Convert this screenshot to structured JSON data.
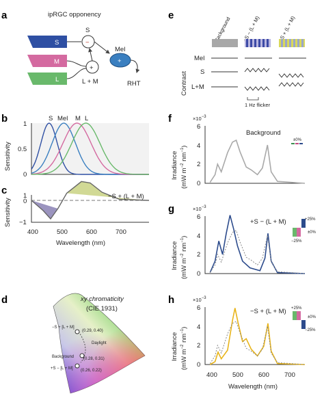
{
  "colors": {
    "S": "#2e4fa3",
    "M": "#d46aa0",
    "L": "#69b96b",
    "Mel": "#3a7fc0",
    "gray": "#a9a9a9",
    "blue": "#2c4b8c",
    "yellow": "#e8b41a",
    "opp_yellow": "#ccd58a",
    "opp_purple": "#8a81b4"
  },
  "panels": {
    "a": "a",
    "b": "b",
    "c": "c",
    "d": "d",
    "e": "e",
    "f": "f",
    "g": "g",
    "h": "h"
  },
  "a": {
    "title": "ipRGC opponency",
    "S": "S",
    "M": "M",
    "L": "L",
    "S_node": "S",
    "minus": "−",
    "plus": "+",
    "LM": "L + M",
    "Mel": "Mel",
    "mel_plus": "+",
    "RHT": "RHT"
  },
  "b": {
    "ylabel": "Sensitivity",
    "labels": [
      "S",
      "Mel",
      "M",
      "L"
    ],
    "yticks": [
      "0",
      "0.5",
      "1"
    ]
  },
  "c": {
    "ylabel": "Sensitivity",
    "yticks": [
      "1",
      "0",
      "−1"
    ],
    "annotation": "−S + (L + M)",
    "xticks": [
      "400",
      "500",
      "600",
      "700"
    ],
    "xlabel": "Wavelength (nm)"
  },
  "d": {
    "title1": "xy chromaticity",
    "title2": "(CIE 1931)",
    "labels": [
      "−S + [L + M]",
      "(0.29, 0.40)",
      "Daylight",
      "Background",
      "(0.28, 0.31)",
      "+S − [L + M]",
      "(0.26, 0.22)"
    ]
  },
  "e": {
    "cols": [
      "Background",
      "+S − (L + M)",
      "−S + (L + M)"
    ],
    "rows": [
      "Mel",
      "S",
      "L+M"
    ],
    "contrast": "Contrast",
    "flicker": "1 Hz flicker"
  },
  "f": {
    "exp": "×10",
    "exp_power": "−3",
    "yticks": [
      "0",
      "2",
      "4",
      "6"
    ],
    "ylabel1": "Irradiance",
    "ylabel2": "(mW m",
    "ylabel2_sup1": "−2",
    "ylabel2_mid": " nm",
    "ylabel2_sup2": "−1",
    "ylabel2_end": ")",
    "annotation": "Background",
    "legend": "±0%"
  },
  "g": {
    "exp": "×10",
    "exp_power": "−3",
    "yticks": [
      "0",
      "2",
      "4",
      "6"
    ],
    "annotation": "+S − (L + M)",
    "legend": [
      "+25%",
      "±0%",
      "−25%"
    ]
  },
  "h": {
    "exp": "×10",
    "exp_power": "−3",
    "yticks": [
      "0",
      "2",
      "4",
      "6"
    ],
    "annotation": "−S + (L + M)",
    "legend": [
      "+25%",
      "±0%",
      "−25%"
    ],
    "xticks": [
      "400",
      "500",
      "600",
      "700"
    ],
    "xlabel": "Wavelength (nm)"
  },
  "chart_data": [
    {
      "type": "line",
      "panel": "b",
      "x": [
        380,
        780
      ],
      "ylim": [
        0,
        1
      ],
      "series": [
        {
          "name": "S",
          "peak": 440
        },
        {
          "name": "Mel",
          "peak": 490
        },
        {
          "name": "M",
          "peak": 535
        },
        {
          "name": "L",
          "peak": 565
        }
      ]
    },
    {
      "type": "area",
      "panel": "c",
      "ylim": [
        -1,
        1
      ],
      "series": [
        {
          "name": "−S + (L + M)",
          "points": [
            [
              380,
              0
            ],
            [
              420,
              -0.5
            ],
            [
              445,
              -0.9
            ],
            [
              470,
              -0.4
            ],
            [
              500,
              0.35
            ],
            [
              550,
              0.92
            ],
            [
              580,
              0.85
            ],
            [
              620,
              0.4
            ],
            [
              680,
              0.05
            ],
            [
              780,
              0
            ]
          ]
        }
      ]
    },
    {
      "type": "line",
      "panel": "f",
      "ylim": [
        0,
        6
      ],
      "series": [
        {
          "name": "Background",
          "points": [
            [
              400,
              0.1
            ],
            [
              420,
              0.9
            ],
            [
              430,
              2.0
            ],
            [
              445,
              1.2
            ],
            [
              470,
              3.2
            ],
            [
              490,
              4.3
            ],
            [
              505,
              4.5
            ],
            [
              520,
              3.3
            ],
            [
              545,
              1.7
            ],
            [
              565,
              1.4
            ],
            [
              590,
              0.9
            ],
            [
              610,
              1.6
            ],
            [
              630,
              4.0
            ],
            [
              645,
              1.2
            ],
            [
              670,
              0.2
            ],
            [
              780,
              0
            ]
          ]
        }
      ]
    },
    {
      "type": "line",
      "panel": "g",
      "ylim": [
        0,
        6
      ],
      "series": [
        {
          "name": "+S − (L + M)",
          "points": [
            [
              400,
              0.1
            ],
            [
              420,
              1.3
            ],
            [
              435,
              3.4
            ],
            [
              450,
              2.0
            ],
            [
              465,
              4.2
            ],
            [
              480,
              6.1
            ],
            [
              495,
              4.6
            ],
            [
              510,
              2.9
            ],
            [
              530,
              1.3
            ],
            [
              560,
              0.6
            ],
            [
              600,
              0.3
            ],
            [
              620,
              1.6
            ],
            [
              632,
              4.2
            ],
            [
              645,
              1.3
            ],
            [
              670,
              0.1
            ],
            [
              780,
              0
            ]
          ]
        },
        {
          "name": "Background",
          "points": [
            [
              400,
              0.1
            ],
            [
              420,
              0.9
            ],
            [
              430,
              2.0
            ],
            [
              445,
              1.2
            ],
            [
              470,
              3.2
            ],
            [
              490,
              4.3
            ],
            [
              505,
              4.5
            ],
            [
              520,
              3.3
            ],
            [
              545,
              1.7
            ],
            [
              565,
              1.4
            ],
            [
              590,
              0.9
            ],
            [
              610,
              1.6
            ],
            [
              630,
              4.0
            ],
            [
              645,
              1.2
            ],
            [
              670,
              0.2
            ],
            [
              780,
              0
            ]
          ]
        }
      ]
    },
    {
      "type": "line",
      "panel": "h",
      "ylim": [
        0,
        6
      ],
      "series": [
        {
          "name": "−S + (L + M)",
          "points": [
            [
              400,
              0
            ],
            [
              420,
              0.3
            ],
            [
              432,
              1.3
            ],
            [
              445,
              0.6
            ],
            [
              470,
              1.5
            ],
            [
              490,
              4.6
            ],
            [
              500,
              5.9
            ],
            [
              512,
              4.4
            ],
            [
              530,
              2.4
            ],
            [
              545,
              2.7
            ],
            [
              565,
              1.6
            ],
            [
              590,
              0.9
            ],
            [
              615,
              1.9
            ],
            [
              632,
              4.3
            ],
            [
              645,
              1.4
            ],
            [
              670,
              0.1
            ],
            [
              780,
              0
            ]
          ]
        },
        {
          "name": "Background",
          "points": [
            [
              400,
              0.1
            ],
            [
              420,
              0.9
            ],
            [
              430,
              2.0
            ],
            [
              445,
              1.2
            ],
            [
              470,
              3.2
            ],
            [
              490,
              4.3
            ],
            [
              505,
              4.5
            ],
            [
              520,
              3.3
            ],
            [
              545,
              1.7
            ],
            [
              565,
              1.4
            ],
            [
              590,
              0.9
            ],
            [
              610,
              1.6
            ],
            [
              630,
              4.0
            ],
            [
              645,
              1.2
            ],
            [
              670,
              0.2
            ],
            [
              780,
              0
            ]
          ]
        }
      ]
    }
  ]
}
